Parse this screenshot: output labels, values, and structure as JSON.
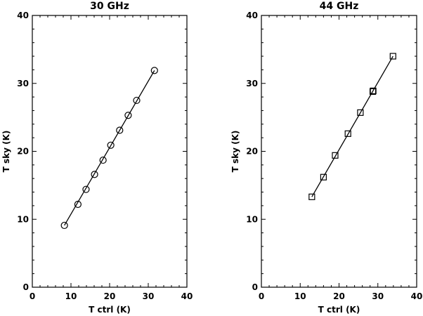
{
  "chart_data": [
    {
      "type": "line",
      "title": "30 GHz",
      "xlabel": "T ctrl (K)",
      "ylabel": "T sky (K)",
      "xlim": [
        0,
        40
      ],
      "ylim": [
        0,
        40
      ],
      "xticks": [
        "0",
        "10",
        "20",
        "30",
        "40"
      ],
      "yticks": [
        "0",
        "10",
        "20",
        "30",
        "40"
      ],
      "marker": "circle",
      "grid": false,
      "series": [
        {
          "x": [
            8.3,
            11.8,
            13.9,
            16.1,
            18.3,
            20.3,
            22.6,
            24.8,
            27.0,
            31.6
          ],
          "y": [
            9.1,
            12.2,
            14.4,
            16.6,
            18.7,
            20.9,
            23.1,
            25.3,
            27.5,
            31.9
          ]
        }
      ],
      "fit_line": {
        "x": [
          8.3,
          31.6
        ],
        "y": [
          9.1,
          31.9
        ]
      }
    },
    {
      "type": "line",
      "title": "44 GHz",
      "xlabel": "T ctrl (K)",
      "ylabel": "T sky (K)",
      "xlim": [
        0,
        40
      ],
      "ylim": [
        0,
        40
      ],
      "xticks": [
        "0",
        "10",
        "20",
        "30",
        "40"
      ],
      "yticks": [
        "0",
        "10",
        "20",
        "30",
        "40"
      ],
      "marker": "square",
      "grid": false,
      "series": [
        {
          "x": [
            13.0,
            16.0,
            19.0,
            22.3,
            25.5,
            28.7,
            28.8,
            33.9
          ],
          "y": [
            13.3,
            16.2,
            19.4,
            22.6,
            25.7,
            28.8,
            28.9,
            34.0
          ]
        }
      ],
      "fit_line": {
        "x": [
          13.0,
          33.9
        ],
        "y": [
          13.3,
          34.0
        ]
      }
    }
  ]
}
